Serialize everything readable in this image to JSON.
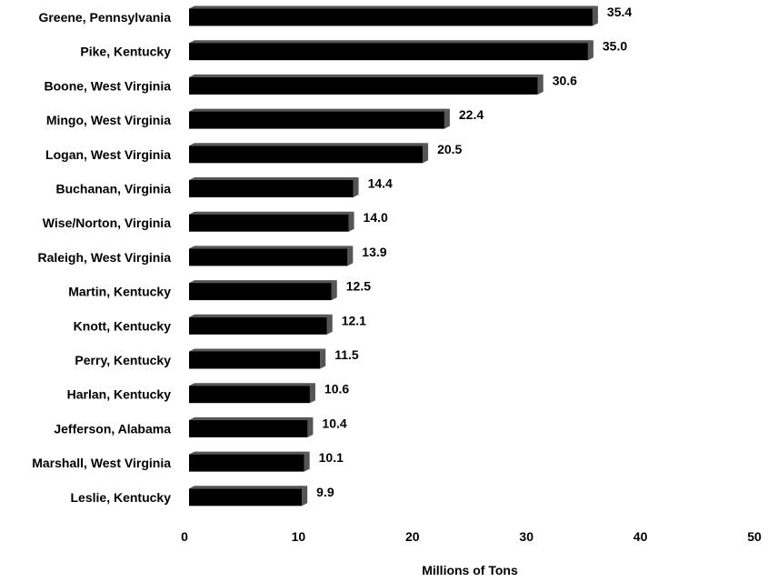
{
  "chart_data": {
    "type": "bar",
    "orientation": "horizontal",
    "categories": [
      "Greene, Pennsylvania",
      "Pike, Kentucky",
      "Boone, West Virginia",
      "Mingo, West Virginia",
      "Logan, West Virginia",
      "Buchanan, Virginia",
      "Wise/Norton, Virginia",
      "Raleigh, West Virginia",
      "Martin, Kentucky",
      "Knott, Kentucky",
      "Perry, Kentucky",
      "Harlan, Kentucky",
      "Jefferson, Alabama",
      "Marshall, West Virginia",
      "Leslie, Kentucky"
    ],
    "values": [
      35.4,
      35.0,
      30.6,
      22.4,
      20.5,
      14.4,
      14.0,
      13.9,
      12.5,
      12.1,
      11.5,
      10.6,
      10.4,
      10.1,
      9.9
    ],
    "value_labels": [
      "35.4",
      "35.0",
      "30.6",
      "22.4",
      "20.5",
      "14.4",
      "14.0",
      "13.9",
      "12.5",
      "12.1",
      "11.5",
      "10.6",
      "10.4",
      "10.1",
      "9.9"
    ],
    "xlabel": "Millions of Tons",
    "ylabel": "",
    "xlim": [
      0,
      50
    ],
    "xticks": [
      "0",
      "10",
      "20",
      "30",
      "40",
      "50"
    ],
    "grid": false,
    "legend": "none",
    "bar_color": "#000000",
    "bar_shade_color": "#555555"
  }
}
